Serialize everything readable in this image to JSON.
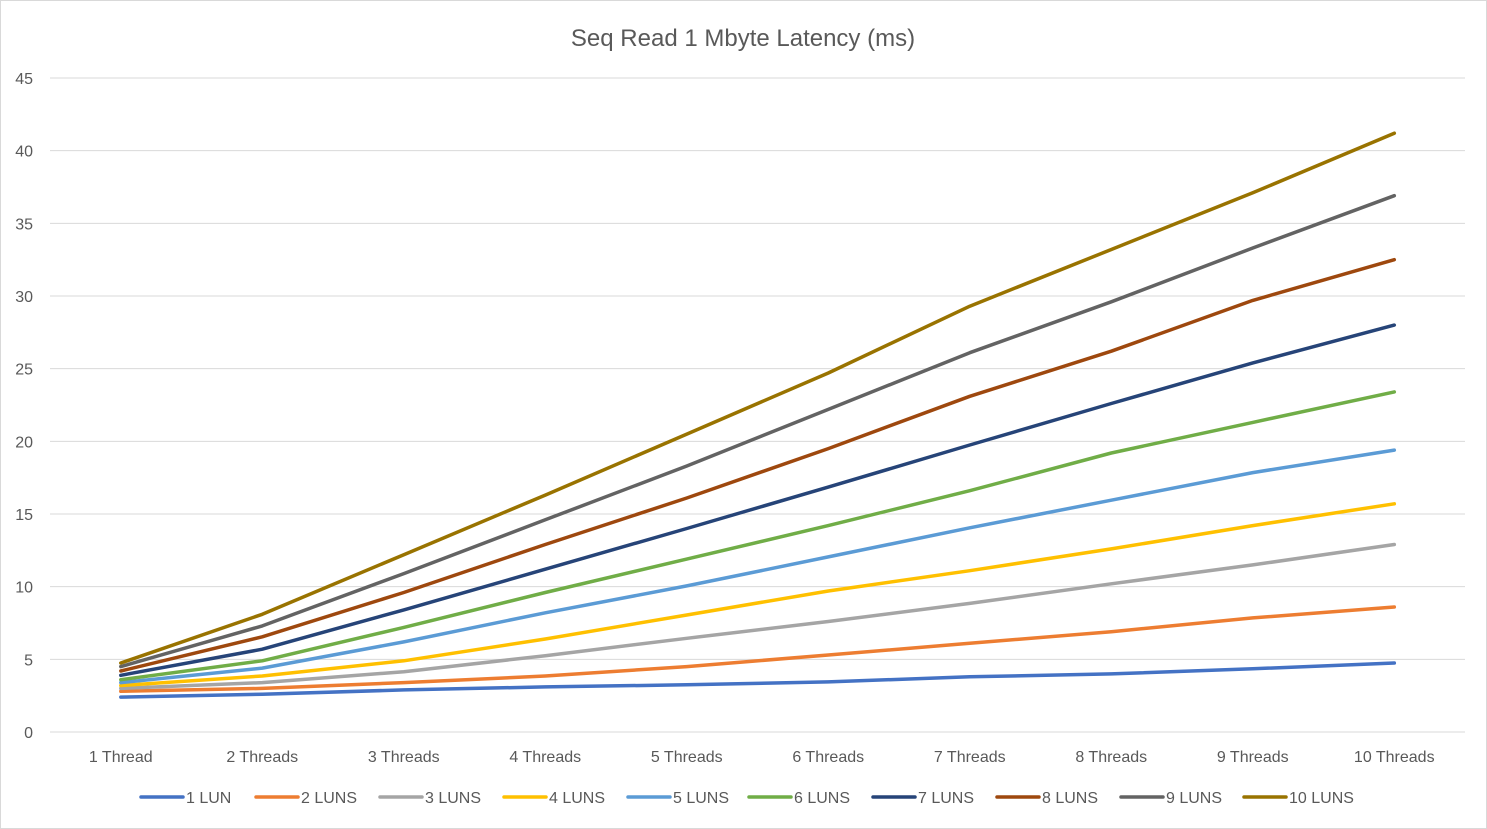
{
  "chart_data": {
    "type": "line",
    "title": "Seq Read 1 Mbyte Latency (ms)",
    "xlabel": "",
    "ylabel": "",
    "categories": [
      "1 Thread",
      "2 Threads",
      "3 Threads",
      "4 Threads",
      "5 Threads",
      "6 Threads",
      "7 Threads",
      "8 Threads",
      "9 Threads",
      "10 Threads"
    ],
    "ylim": [
      0,
      45
    ],
    "yticks": [
      0,
      5,
      10,
      15,
      20,
      25,
      30,
      35,
      40,
      45
    ],
    "grid": true,
    "legend_position": "bottom",
    "series": [
      {
        "name": "1 LUN",
        "color": "#4472C4",
        "values": [
          2.4,
          2.6,
          2.9,
          3.1,
          3.25,
          3.45,
          3.8,
          4.0,
          4.35,
          4.75
        ]
      },
      {
        "name": "2 LUNS",
        "color": "#ED7D31",
        "values": [
          2.8,
          3.0,
          3.4,
          3.85,
          4.5,
          5.3,
          6.1,
          6.9,
          7.85,
          8.6
        ]
      },
      {
        "name": "3 LUNS",
        "color": "#A5A5A5",
        "values": [
          3.0,
          3.4,
          4.15,
          5.25,
          6.45,
          7.6,
          8.85,
          10.2,
          11.5,
          12.9
        ]
      },
      {
        "name": "4 LUNS",
        "color": "#FFC000",
        "values": [
          3.2,
          3.85,
          4.9,
          6.4,
          8.05,
          9.7,
          11.1,
          12.6,
          14.2,
          15.7
        ]
      },
      {
        "name": "5 LUNS",
        "color": "#5B9BD5",
        "values": [
          3.4,
          4.4,
          6.2,
          8.2,
          10.05,
          12.05,
          14.05,
          15.95,
          17.85,
          19.4
        ]
      },
      {
        "name": "6 LUNS",
        "color": "#70AD47",
        "values": [
          3.6,
          4.9,
          7.2,
          9.6,
          11.9,
          14.2,
          16.6,
          19.2,
          21.3,
          23.4
        ]
      },
      {
        "name": "7 LUNS",
        "color": "#264478",
        "values": [
          3.9,
          5.7,
          8.4,
          11.2,
          14.0,
          16.85,
          19.75,
          22.6,
          25.4,
          28.0
        ]
      },
      {
        "name": "8 LUNS",
        "color": "#9E480E",
        "values": [
          4.2,
          6.55,
          9.6,
          12.9,
          16.1,
          19.5,
          23.1,
          26.2,
          29.7,
          32.5
        ]
      },
      {
        "name": "9 LUNS",
        "color": "#636363",
        "values": [
          4.5,
          7.3,
          10.9,
          14.6,
          18.3,
          22.2,
          26.1,
          29.6,
          33.3,
          36.9
        ]
      },
      {
        "name": "10 LUNS",
        "color": "#997300",
        "values": [
          4.75,
          8.1,
          12.2,
          16.3,
          20.5,
          24.7,
          29.3,
          33.2,
          37.1,
          41.2
        ]
      }
    ]
  }
}
